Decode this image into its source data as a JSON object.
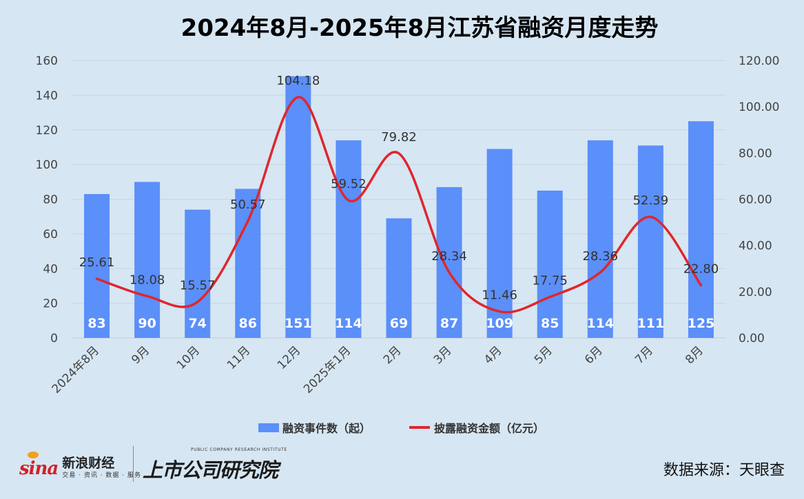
{
  "chart_data": {
    "type": "bar+line",
    "title": "2024年8月-2025年8月江苏省融资月度走势",
    "categories": [
      "2024年8月",
      "9月",
      "10月",
      "11月",
      "12月",
      "2025年1月",
      "2月",
      "3月",
      "4月",
      "5月",
      "6月",
      "7月",
      "8月"
    ],
    "series": [
      {
        "name": "融资事件数（起）",
        "type": "bar",
        "axis": "left",
        "color": "#5b8ff9",
        "values": [
          83,
          90,
          74,
          86,
          151,
          114,
          69,
          87,
          109,
          85,
          114,
          111,
          125
        ],
        "labels": [
          "83",
          "90",
          "74",
          "86",
          "151",
          "114",
          "69",
          "87",
          "109",
          "85",
          "114",
          "111",
          "125"
        ]
      },
      {
        "name": "披露融资金额（亿元）",
        "type": "line",
        "smooth": true,
        "axis": "right",
        "color": "#e0262c",
        "values": [
          25.61,
          18.08,
          15.57,
          50.57,
          104.18,
          59.52,
          79.82,
          28.34,
          11.46,
          17.75,
          28.36,
          52.39,
          22.8
        ],
        "labels": [
          "25.61",
          "18.08",
          "15.57",
          "50.57",
          "104.18",
          "59.52",
          "79.82",
          "28.34",
          "11.46",
          "17.75",
          "28.36",
          "52.39",
          "22.80"
        ]
      }
    ],
    "y_left": {
      "min": 0,
      "max": 160,
      "ticks": [
        0,
        20,
        40,
        60,
        80,
        100,
        120,
        140,
        160
      ],
      "tick_labels": [
        "0",
        "20",
        "40",
        "60",
        "80",
        "100",
        "120",
        "140",
        "160"
      ]
    },
    "y_right": {
      "min": 0,
      "max": 120,
      "ticks": [
        0,
        20,
        40,
        60,
        80,
        100,
        120
      ],
      "tick_labels": [
        "0.00",
        "20.00",
        "40.00",
        "60.00",
        "80.00",
        "100.00",
        "120.00"
      ]
    },
    "grid": true,
    "legend_position": "bottom"
  },
  "footer": {
    "sina_logo": "sina",
    "sina_name": "新浪财经",
    "sina_tagline": "交易 · 资讯 · 数据 · 服务",
    "research_en": "PUBLIC COMPANY RESEARCH INSTITUTE",
    "research_cn": "上市公司研究院",
    "source": "数据来源：天眼查"
  }
}
